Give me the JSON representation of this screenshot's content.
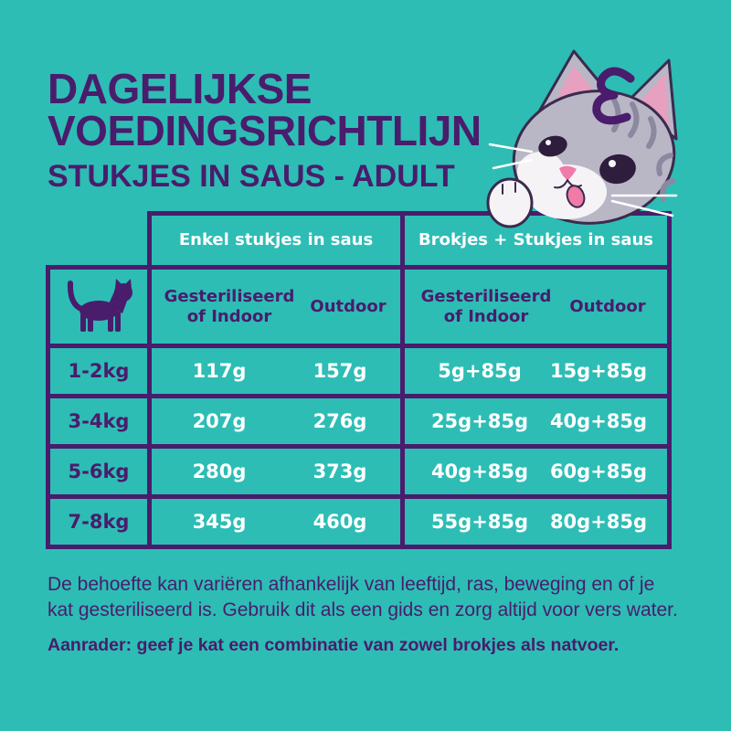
{
  "title": {
    "line1": "DAGELIJKSE",
    "line2": "VOEDINGSRICHTLIJN",
    "subtitle": "STUKJES IN SAUS - ADULT"
  },
  "illustration": {
    "mascot_icon": "cat-mascot-illustration",
    "logo_icon": "epsilon-logo-icon"
  },
  "table": {
    "weight_header_icon": "cat-silhouette-icon",
    "groups": [
      {
        "label": "Enkel stukjes in saus",
        "columns": [
          "Gesteriliseerd of Indoor",
          "Outdoor"
        ]
      },
      {
        "label": "Brokjes + Stukjes in saus",
        "columns": [
          "Gesteriliseerd of Indoor",
          "Outdoor"
        ]
      }
    ],
    "rows": [
      {
        "weight": "1-2kg",
        "values": [
          "117g",
          "157g",
          "5g+85g",
          "15g+85g"
        ]
      },
      {
        "weight": "3-4kg",
        "values": [
          "207g",
          "276g",
          "25g+85g",
          "40g+85g"
        ]
      },
      {
        "weight": "5-6kg",
        "values": [
          "280g",
          "373g",
          "40g+85g",
          "60g+85g"
        ]
      },
      {
        "weight": "7-8kg",
        "values": [
          "345g",
          "460g",
          "55g+85g",
          "80g+85g"
        ]
      }
    ]
  },
  "note": {
    "lines": [
      "De behoefte kan variëren afhankelijk van leeftijd, ras, beweging en of je",
      "kat gesteriliseerd is. Gebruik dit als een gids en zorg altijd voor vers water."
    ],
    "tip": "Aanrader: geef je kat een combinatie van zowel brokjes als natvoer."
  },
  "colors": {
    "background": "#2dbdb5",
    "primary_purple": "#4a1c6c",
    "header_text": "#ffffff"
  }
}
